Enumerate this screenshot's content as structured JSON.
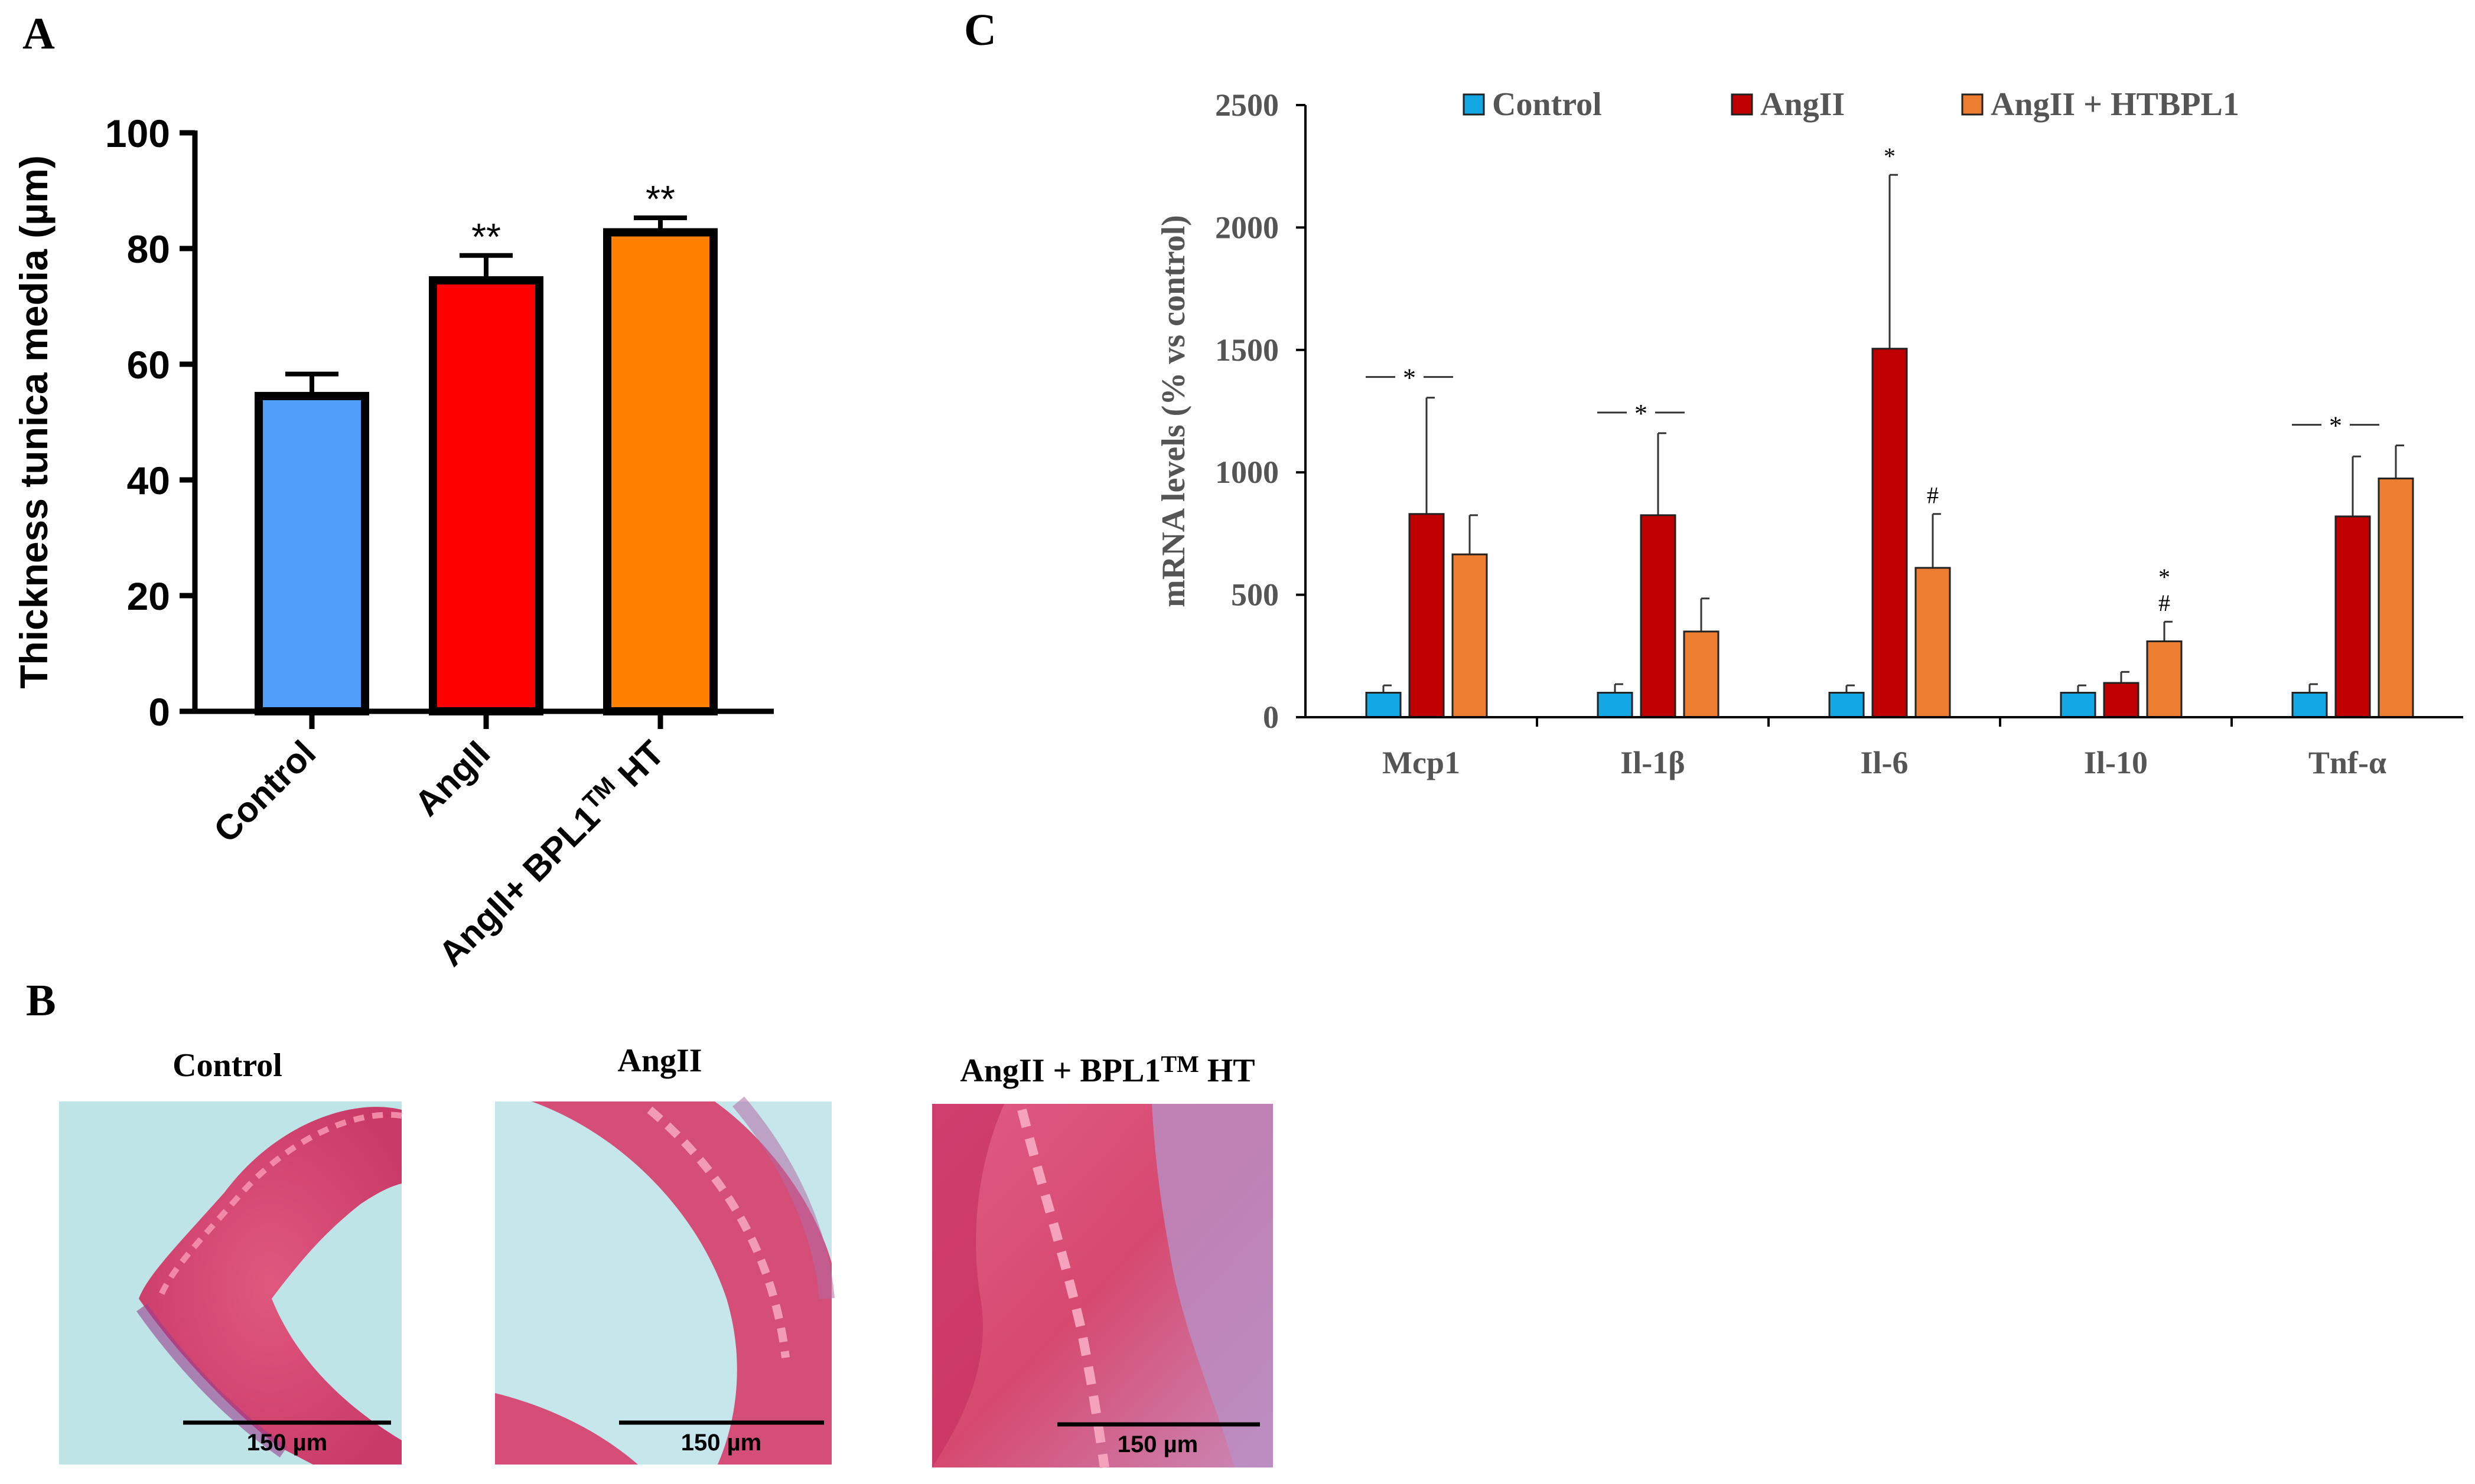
{
  "panels": {
    "a": "A",
    "b": "B",
    "c": "C"
  },
  "colors": {
    "control_a": "#4f9ff8",
    "angii_a": "#ff0000",
    "bpl1_a": "#ff8000",
    "control_c": "#12a7e3",
    "angii_c": "#c00000",
    "bpl1_c": "#ed7d31"
  },
  "chart_data": [
    {
      "panel": "A",
      "type": "bar",
      "ylabel": "Thickness tunica media (µm)",
      "ylim": [
        0,
        100
      ],
      "yticks": [
        0,
        20,
        40,
        60,
        80,
        100
      ],
      "categories": [
        "Control",
        "AngII",
        "AngII+ BPL1™ HT"
      ],
      "category_parts": [
        [
          "Control",
          ""
        ],
        [
          "AngII",
          ""
        ],
        [
          "AngII+ BPL1",
          "TM",
          " HT"
        ]
      ],
      "values": [
        54.5,
        74.5,
        82.8
      ],
      "errors": [
        3.8,
        4.3,
        2.5
      ],
      "significance": [
        "",
        "**",
        "**"
      ]
    },
    {
      "panel": "C",
      "type": "bar",
      "ylabel": "mRNA levels (% vs control)",
      "ylim": [
        0,
        2500
      ],
      "yticks": [
        0,
        500,
        1000,
        1500,
        2000,
        2500
      ],
      "categories": [
        "Mcp1",
        "Il-1β",
        "Il-6",
        "Il-10",
        "Tnf-α"
      ],
      "series": [
        {
          "name": "Control",
          "values": [
            100,
            100,
            100,
            100,
            100
          ],
          "errors": [
            30,
            35,
            30,
            30,
            35
          ]
        },
        {
          "name": "AngII",
          "values": [
            830,
            825,
            1505,
            140,
            820
          ],
          "errors": [
            475,
            335,
            710,
            45,
            245
          ]
        },
        {
          "name": "AngII + HTBPL1",
          "values": [
            665,
            350,
            610,
            310,
            975
          ],
          "errors": [
            160,
            135,
            220,
            80,
            135
          ]
        }
      ],
      "annotations": [
        {
          "category": "Mcp1",
          "text": "*",
          "type": "bracket"
        },
        {
          "category": "Il-1β",
          "text": "*",
          "type": "bracket"
        },
        {
          "category": "Il-6",
          "series": "AngII",
          "text": "*"
        },
        {
          "category": "Il-6",
          "series": "AngII + HTBPL1",
          "text": "#"
        },
        {
          "category": "Il-10",
          "series": "AngII + HTBPL1",
          "text": "*"
        },
        {
          "category": "Il-10",
          "series": "AngII + HTBPL1",
          "text": "#"
        },
        {
          "category": "Tnf-α",
          "text": "*",
          "type": "bracket"
        }
      ]
    }
  ],
  "histology": {
    "scale_label": "150 µm",
    "images": [
      {
        "label": "Control"
      },
      {
        "label": "AngII"
      },
      {
        "label_parts": [
          "AngII +  BPL1",
          "TM",
          " HT"
        ]
      }
    ]
  }
}
